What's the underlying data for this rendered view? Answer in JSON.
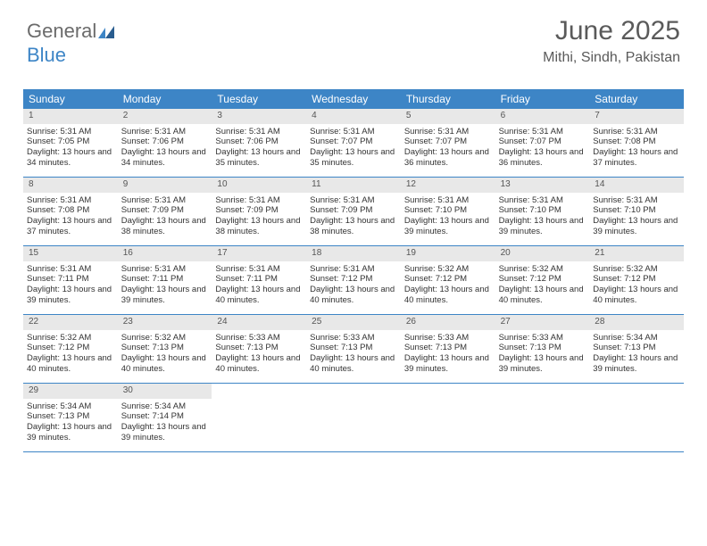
{
  "logo": {
    "text1": "General",
    "text2": "Blue"
  },
  "title": "June 2025",
  "location": "Mithi, Sindh, Pakistan",
  "weekdays": [
    "Sunday",
    "Monday",
    "Tuesday",
    "Wednesday",
    "Thursday",
    "Friday",
    "Saturday"
  ],
  "colors": {
    "header_bg": "#3d85c6",
    "header_text": "#ffffff",
    "daynum_bg": "#e8e8e8",
    "border": "#3d85c6",
    "text": "#333333",
    "title_text": "#5a5a5a"
  },
  "typography": {
    "title_fontsize": 30,
    "location_fontsize": 16,
    "weekday_fontsize": 12,
    "daynum_fontsize": 10,
    "body_fontsize": 9.5
  },
  "layout": {
    "columns": 7,
    "rows": 5,
    "cell_min_height": 76
  },
  "days": [
    {
      "n": "1",
      "sr": "5:31 AM",
      "ss": "7:05 PM",
      "dl": "13 hours and 34 minutes."
    },
    {
      "n": "2",
      "sr": "5:31 AM",
      "ss": "7:06 PM",
      "dl": "13 hours and 34 minutes."
    },
    {
      "n": "3",
      "sr": "5:31 AM",
      "ss": "7:06 PM",
      "dl": "13 hours and 35 minutes."
    },
    {
      "n": "4",
      "sr": "5:31 AM",
      "ss": "7:07 PM",
      "dl": "13 hours and 35 minutes."
    },
    {
      "n": "5",
      "sr": "5:31 AM",
      "ss": "7:07 PM",
      "dl": "13 hours and 36 minutes."
    },
    {
      "n": "6",
      "sr": "5:31 AM",
      "ss": "7:07 PM",
      "dl": "13 hours and 36 minutes."
    },
    {
      "n": "7",
      "sr": "5:31 AM",
      "ss": "7:08 PM",
      "dl": "13 hours and 37 minutes."
    },
    {
      "n": "8",
      "sr": "5:31 AM",
      "ss": "7:08 PM",
      "dl": "13 hours and 37 minutes."
    },
    {
      "n": "9",
      "sr": "5:31 AM",
      "ss": "7:09 PM",
      "dl": "13 hours and 38 minutes."
    },
    {
      "n": "10",
      "sr": "5:31 AM",
      "ss": "7:09 PM",
      "dl": "13 hours and 38 minutes."
    },
    {
      "n": "11",
      "sr": "5:31 AM",
      "ss": "7:09 PM",
      "dl": "13 hours and 38 minutes."
    },
    {
      "n": "12",
      "sr": "5:31 AM",
      "ss": "7:10 PM",
      "dl": "13 hours and 39 minutes."
    },
    {
      "n": "13",
      "sr": "5:31 AM",
      "ss": "7:10 PM",
      "dl": "13 hours and 39 minutes."
    },
    {
      "n": "14",
      "sr": "5:31 AM",
      "ss": "7:10 PM",
      "dl": "13 hours and 39 minutes."
    },
    {
      "n": "15",
      "sr": "5:31 AM",
      "ss": "7:11 PM",
      "dl": "13 hours and 39 minutes."
    },
    {
      "n": "16",
      "sr": "5:31 AM",
      "ss": "7:11 PM",
      "dl": "13 hours and 39 minutes."
    },
    {
      "n": "17",
      "sr": "5:31 AM",
      "ss": "7:11 PM",
      "dl": "13 hours and 40 minutes."
    },
    {
      "n": "18",
      "sr": "5:31 AM",
      "ss": "7:12 PM",
      "dl": "13 hours and 40 minutes."
    },
    {
      "n": "19",
      "sr": "5:32 AM",
      "ss": "7:12 PM",
      "dl": "13 hours and 40 minutes."
    },
    {
      "n": "20",
      "sr": "5:32 AM",
      "ss": "7:12 PM",
      "dl": "13 hours and 40 minutes."
    },
    {
      "n": "21",
      "sr": "5:32 AM",
      "ss": "7:12 PM",
      "dl": "13 hours and 40 minutes."
    },
    {
      "n": "22",
      "sr": "5:32 AM",
      "ss": "7:12 PM",
      "dl": "13 hours and 40 minutes."
    },
    {
      "n": "23",
      "sr": "5:32 AM",
      "ss": "7:13 PM",
      "dl": "13 hours and 40 minutes."
    },
    {
      "n": "24",
      "sr": "5:33 AM",
      "ss": "7:13 PM",
      "dl": "13 hours and 40 minutes."
    },
    {
      "n": "25",
      "sr": "5:33 AM",
      "ss": "7:13 PM",
      "dl": "13 hours and 40 minutes."
    },
    {
      "n": "26",
      "sr": "5:33 AM",
      "ss": "7:13 PM",
      "dl": "13 hours and 39 minutes."
    },
    {
      "n": "27",
      "sr": "5:33 AM",
      "ss": "7:13 PM",
      "dl": "13 hours and 39 minutes."
    },
    {
      "n": "28",
      "sr": "5:34 AM",
      "ss": "7:13 PM",
      "dl": "13 hours and 39 minutes."
    },
    {
      "n": "29",
      "sr": "5:34 AM",
      "ss": "7:13 PM",
      "dl": "13 hours and 39 minutes."
    },
    {
      "n": "30",
      "sr": "5:34 AM",
      "ss": "7:14 PM",
      "dl": "13 hours and 39 minutes."
    }
  ],
  "labels": {
    "sunrise": "Sunrise: ",
    "sunset": "Sunset: ",
    "daylight": "Daylight: "
  }
}
